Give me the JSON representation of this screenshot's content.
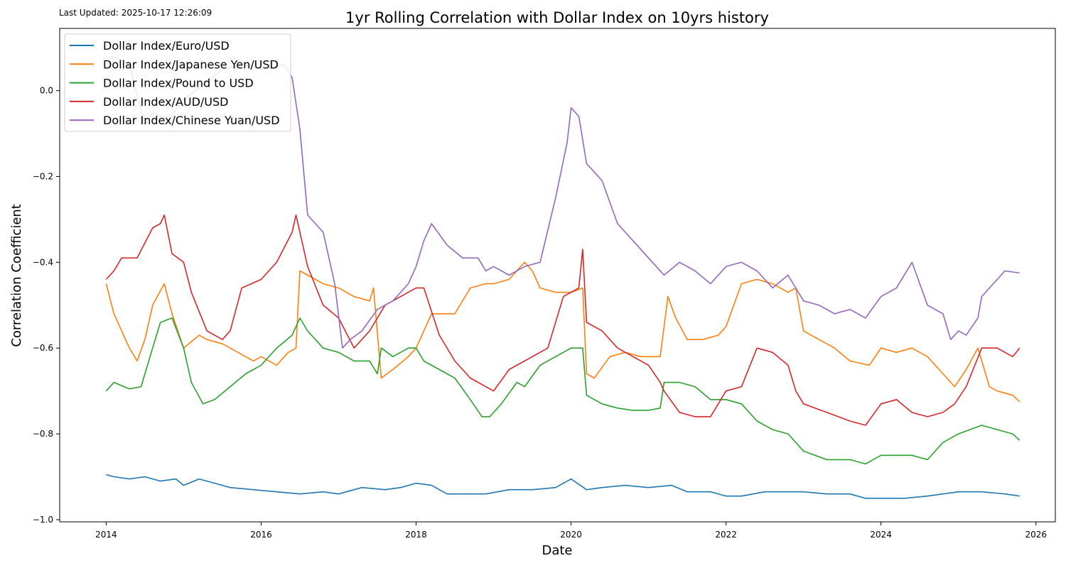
{
  "last_updated": "Last Updated: 2025-10-17 12:26:09",
  "chart_data": {
    "type": "line",
    "title": "1yr Rolling Correlation with Dollar Index on 10yrs history",
    "xlabel": "Date",
    "ylabel": "Correlation Coefficient",
    "xlim": [
      2013.4,
      2026.25
    ],
    "ylim": [
      -1.005,
      0.145
    ],
    "xticks": [
      2014,
      2016,
      2018,
      2020,
      2022,
      2024,
      2026
    ],
    "xtick_labels": [
      "2014",
      "2016",
      "2018",
      "2020",
      "2022",
      "2024",
      "2026"
    ],
    "yticks": [
      -1.0,
      -0.8,
      -0.6,
      -0.4,
      -0.2,
      0.0
    ],
    "ytick_labels": [
      "−1.0",
      "−0.8",
      "−0.6",
      "−0.4",
      "−0.2",
      "0.0"
    ],
    "grid": false,
    "legend_position": "top-left",
    "series": [
      {
        "name": "Dollar Index/Euro/USD",
        "color": "#1f77b4",
        "x": [
          2014.0,
          2014.1,
          2014.3,
          2014.5,
          2014.7,
          2014.9,
          2015.0,
          2015.2,
          2015.4,
          2015.6,
          2015.9,
          2016.2,
          2016.5,
          2016.8,
          2017.0,
          2017.3,
          2017.6,
          2017.8,
          2018.0,
          2018.2,
          2018.4,
          2018.7,
          2018.9,
          2019.2,
          2019.5,
          2019.8,
          2020.0,
          2020.2,
          2020.4,
          2020.7,
          2021.0,
          2021.3,
          2021.5,
          2021.8,
          2022.0,
          2022.2,
          2022.5,
          2022.8,
          2023.0,
          2023.3,
          2023.6,
          2023.8,
          2024.0,
          2024.3,
          2024.6,
          2024.8,
          2025.0,
          2025.3,
          2025.6,
          2025.79
        ],
        "y": [
          -0.895,
          -0.9,
          -0.905,
          -0.9,
          -0.91,
          -0.905,
          -0.92,
          -0.905,
          -0.915,
          -0.925,
          -0.93,
          -0.935,
          -0.94,
          -0.935,
          -0.94,
          -0.925,
          -0.93,
          -0.925,
          -0.915,
          -0.92,
          -0.94,
          -0.94,
          -0.94,
          -0.93,
          -0.93,
          -0.925,
          -0.905,
          -0.93,
          -0.925,
          -0.92,
          -0.925,
          -0.92,
          -0.935,
          -0.935,
          -0.945,
          -0.945,
          -0.935,
          -0.935,
          -0.935,
          -0.94,
          -0.94,
          -0.95,
          -0.95,
          -0.95,
          -0.945,
          -0.94,
          -0.935,
          -0.935,
          -0.94,
          -0.945
        ]
      },
      {
        "name": "Dollar Index/Japanese Yen/USD",
        "color": "#ff7f0e",
        "x": [
          2014.0,
          2014.1,
          2014.2,
          2014.3,
          2014.4,
          2014.5,
          2014.6,
          2014.75,
          2014.85,
          2015.0,
          2015.2,
          2015.3,
          2015.5,
          2015.7,
          2015.9,
          2016.0,
          2016.2,
          2016.35,
          2016.45,
          2016.5,
          2016.6,
          2016.8,
          2017.0,
          2017.2,
          2017.4,
          2017.45,
          2017.55,
          2017.7,
          2017.9,
          2018.0,
          2018.2,
          2018.3,
          2018.5,
          2018.7,
          2018.9,
          2019.0,
          2019.2,
          2019.4,
          2019.5,
          2019.6,
          2019.8,
          2020.0,
          2020.15,
          2020.2,
          2020.3,
          2020.5,
          2020.7,
          2020.9,
          2021.1,
          2021.15,
          2021.25,
          2021.35,
          2021.5,
          2021.7,
          2021.9,
          2022.0,
          2022.1,
          2022.2,
          2022.4,
          2022.6,
          2022.8,
          2022.9,
          2023.0,
          2023.2,
          2023.4,
          2023.6,
          2023.85,
          2024.0,
          2024.2,
          2024.4,
          2024.6,
          2024.8,
          2024.95,
          2025.1,
          2025.25,
          2025.4,
          2025.5,
          2025.7,
          2025.79
        ],
        "y": [
          -0.45,
          -0.52,
          -0.56,
          -0.6,
          -0.63,
          -0.58,
          -0.5,
          -0.45,
          -0.52,
          -0.6,
          -0.57,
          -0.58,
          -0.59,
          -0.61,
          -0.63,
          -0.62,
          -0.64,
          -0.61,
          -0.6,
          -0.42,
          -0.43,
          -0.45,
          -0.46,
          -0.48,
          -0.49,
          -0.46,
          -0.67,
          -0.65,
          -0.62,
          -0.6,
          -0.52,
          -0.52,
          -0.52,
          -0.46,
          -0.45,
          -0.45,
          -0.44,
          -0.4,
          -0.42,
          -0.46,
          -0.47,
          -0.47,
          -0.46,
          -0.66,
          -0.67,
          -0.62,
          -0.61,
          -0.62,
          -0.62,
          -0.62,
          -0.48,
          -0.53,
          -0.58,
          -0.58,
          -0.57,
          -0.55,
          -0.5,
          -0.45,
          -0.44,
          -0.45,
          -0.47,
          -0.46,
          -0.56,
          -0.58,
          -0.6,
          -0.63,
          -0.64,
          -0.6,
          -0.61,
          -0.6,
          -0.62,
          -0.66,
          -0.69,
          -0.65,
          -0.6,
          -0.69,
          -0.7,
          -0.71,
          -0.725
        ]
      },
      {
        "name": "Dollar Index/Pound to USD",
        "color": "#2ca02c",
        "x": [
          2014.0,
          2014.1,
          2014.3,
          2014.45,
          2014.6,
          2014.7,
          2014.85,
          2015.0,
          2015.1,
          2015.25,
          2015.4,
          2015.6,
          2015.8,
          2016.0,
          2016.2,
          2016.4,
          2016.5,
          2016.6,
          2016.8,
          2017.0,
          2017.2,
          2017.4,
          2017.5,
          2017.55,
          2017.7,
          2017.9,
          2018.0,
          2018.1,
          2018.3,
          2018.5,
          2018.7,
          2018.85,
          2018.95,
          2019.1,
          2019.3,
          2019.4,
          2019.6,
          2019.8,
          2020.0,
          2020.15,
          2020.2,
          2020.4,
          2020.6,
          2020.8,
          2021.0,
          2021.15,
          2021.2,
          2021.4,
          2021.6,
          2021.8,
          2022.0,
          2022.2,
          2022.4,
          2022.6,
          2022.8,
          2023.0,
          2023.3,
          2023.6,
          2023.8,
          2024.0,
          2024.2,
          2024.4,
          2024.6,
          2024.8,
          2025.0,
          2025.3,
          2025.5,
          2025.7,
          2025.79
        ],
        "y": [
          -0.7,
          -0.68,
          -0.695,
          -0.69,
          -0.6,
          -0.54,
          -0.53,
          -0.6,
          -0.68,
          -0.73,
          -0.72,
          -0.69,
          -0.66,
          -0.64,
          -0.6,
          -0.57,
          -0.53,
          -0.56,
          -0.6,
          -0.61,
          -0.63,
          -0.63,
          -0.66,
          -0.6,
          -0.62,
          -0.6,
          -0.6,
          -0.63,
          -0.65,
          -0.67,
          -0.72,
          -0.76,
          -0.76,
          -0.73,
          -0.68,
          -0.69,
          -0.64,
          -0.62,
          -0.6,
          -0.6,
          -0.71,
          -0.73,
          -0.74,
          -0.745,
          -0.745,
          -0.74,
          -0.68,
          -0.68,
          -0.69,
          -0.72,
          -0.72,
          -0.73,
          -0.77,
          -0.79,
          -0.8,
          -0.84,
          -0.86,
          -0.86,
          -0.87,
          -0.85,
          -0.85,
          -0.85,
          -0.86,
          -0.82,
          -0.8,
          -0.78,
          -0.79,
          -0.8,
          -0.815
        ]
      },
      {
        "name": "Dollar Index/AUD/USD",
        "color": "#d62728",
        "x": [
          2014.0,
          2014.1,
          2014.2,
          2014.4,
          2014.6,
          2014.7,
          2014.75,
          2014.85,
          2015.0,
          2015.1,
          2015.3,
          2015.5,
          2015.6,
          2015.75,
          2016.0,
          2016.2,
          2016.4,
          2016.45,
          2016.6,
          2016.8,
          2017.0,
          2017.2,
          2017.4,
          2017.6,
          2017.8,
          2018.0,
          2018.1,
          2018.3,
          2018.5,
          2018.7,
          2018.9,
          2019.0,
          2019.2,
          2019.5,
          2019.7,
          2019.9,
          2020.1,
          2020.15,
          2020.2,
          2020.4,
          2020.6,
          2020.8,
          2021.0,
          2021.15,
          2021.2,
          2021.4,
          2021.6,
          2021.8,
          2022.0,
          2022.2,
          2022.4,
          2022.6,
          2022.8,
          2022.9,
          2023.0,
          2023.3,
          2023.6,
          2023.8,
          2024.0,
          2024.2,
          2024.4,
          2024.6,
          2024.8,
          2024.95,
          2025.1,
          2025.3,
          2025.5,
          2025.7,
          2025.79
        ],
        "y": [
          -0.44,
          -0.42,
          -0.39,
          -0.39,
          -0.32,
          -0.31,
          -0.29,
          -0.38,
          -0.4,
          -0.47,
          -0.56,
          -0.58,
          -0.56,
          -0.46,
          -0.44,
          -0.4,
          -0.33,
          -0.29,
          -0.41,
          -0.5,
          -0.53,
          -0.6,
          -0.56,
          -0.5,
          -0.48,
          -0.46,
          -0.46,
          -0.57,
          -0.63,
          -0.67,
          -0.69,
          -0.7,
          -0.65,
          -0.62,
          -0.6,
          -0.48,
          -0.46,
          -0.37,
          -0.54,
          -0.56,
          -0.6,
          -0.62,
          -0.64,
          -0.68,
          -0.7,
          -0.75,
          -0.76,
          -0.76,
          -0.7,
          -0.69,
          -0.6,
          -0.61,
          -0.64,
          -0.7,
          -0.73,
          -0.75,
          -0.77,
          -0.78,
          -0.73,
          -0.72,
          -0.75,
          -0.76,
          -0.75,
          -0.73,
          -0.69,
          -0.6,
          -0.6,
          -0.62,
          -0.6
        ]
      },
      {
        "name": "Dollar Index/Chinese Yuan/USD",
        "color": "#9467bd",
        "x": [
          2014.0,
          2014.1,
          2014.3,
          2014.5,
          2014.6,
          2014.8,
          2015.0,
          2015.3,
          2015.5,
          2015.8,
          2016.0,
          2016.3,
          2016.4,
          2016.5,
          2016.6,
          2016.8,
          2016.95,
          2017.05,
          2017.15,
          2017.3,
          2017.5,
          2017.7,
          2017.9,
          2018.0,
          2018.1,
          2018.2,
          2018.4,
          2018.6,
          2018.8,
          2018.9,
          2019.0,
          2019.2,
          2019.4,
          2019.6,
          2019.8,
          2019.95,
          2020.0,
          2020.1,
          2020.2,
          2020.4,
          2020.6,
          2020.8,
          2021.0,
          2021.2,
          2021.4,
          2021.6,
          2021.8,
          2022.0,
          2022.2,
          2022.4,
          2022.6,
          2022.8,
          2023.0,
          2023.2,
          2023.4,
          2023.6,
          2023.8,
          2024.0,
          2024.2,
          2024.4,
          2024.6,
          2024.8,
          2024.9,
          2025.0,
          2025.1,
          2025.25,
          2025.3,
          2025.4,
          2025.6,
          2025.79
        ],
        "y": [
          0.07,
          0.08,
          0.06,
          -0.08,
          -0.05,
          -0.07,
          -0.02,
          0.02,
          0.05,
          0.06,
          0.05,
          0.06,
          0.03,
          -0.09,
          -0.29,
          -0.33,
          -0.45,
          -0.6,
          -0.58,
          -0.56,
          -0.51,
          -0.49,
          -0.45,
          -0.41,
          -0.35,
          -0.31,
          -0.36,
          -0.39,
          -0.39,
          -0.42,
          -0.41,
          -0.43,
          -0.41,
          -0.4,
          -0.25,
          -0.12,
          -0.04,
          -0.06,
          -0.17,
          -0.21,
          -0.31,
          -0.35,
          -0.39,
          -0.43,
          -0.4,
          -0.42,
          -0.45,
          -0.41,
          -0.4,
          -0.42,
          -0.46,
          -0.43,
          -0.49,
          -0.5,
          -0.52,
          -0.51,
          -0.53,
          -0.48,
          -0.46,
          -0.4,
          -0.5,
          -0.52,
          -0.58,
          -0.56,
          -0.57,
          -0.53,
          -0.48,
          -0.46,
          -0.42,
          -0.425
        ]
      }
    ]
  }
}
